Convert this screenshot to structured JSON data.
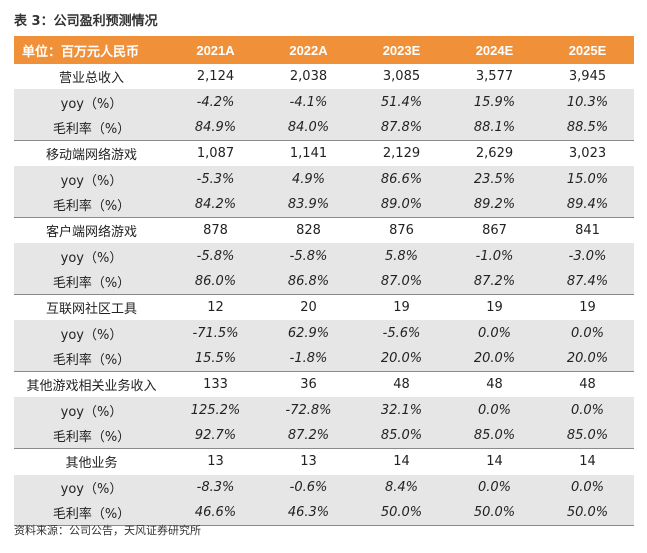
{
  "title": "表 3：公司盈利预测情况",
  "source": "资料来源：公司公告，天风证券研究所",
  "header": [
    "单位：百万元人民币",
    "2021A",
    "2022A",
    "2023E",
    "2024E",
    "2025E"
  ],
  "rows": [
    {
      "label": "营业总收入",
      "type": "seg",
      "values": [
        "2,124",
        "2,038",
        "3,085",
        "3,577",
        "3,945"
      ]
    },
    {
      "label": "yoy（%）",
      "type": "sub",
      "values": [
        "-4.2%",
        "-4.1%",
        "51.4%",
        "15.9%",
        "10.3%"
      ]
    },
    {
      "label": "毛利率（%）",
      "type": "sub",
      "values": [
        "84.9%",
        "84.0%",
        "87.8%",
        "88.1%",
        "88.5%"
      ]
    },
    {
      "label": "移动端网络游戏",
      "type": "seg",
      "values": [
        "1,087",
        "1,141",
        "2,129",
        "2,629",
        "3,023"
      ]
    },
    {
      "label": "yoy（%）",
      "type": "sub",
      "values": [
        "-5.3%",
        "4.9%",
        "86.6%",
        "23.5%",
        "15.0%"
      ]
    },
    {
      "label": "毛利率（%）",
      "type": "sub",
      "values": [
        "84.2%",
        "83.9%",
        "89.0%",
        "89.2%",
        "89.4%"
      ]
    },
    {
      "label": "客户端网络游戏",
      "type": "seg",
      "values": [
        "878",
        "828",
        "876",
        "867",
        "841"
      ]
    },
    {
      "label": "yoy（%）",
      "type": "sub",
      "values": [
        "-5.8%",
        "-5.8%",
        "5.8%",
        "-1.0%",
        "-3.0%"
      ]
    },
    {
      "label": "毛利率（%）",
      "type": "sub",
      "values": [
        "86.0%",
        "86.8%",
        "87.0%",
        "87.2%",
        "87.4%"
      ]
    },
    {
      "label": "互联网社区工具",
      "type": "seg",
      "values": [
        "12",
        "20",
        "19",
        "19",
        "19"
      ]
    },
    {
      "label": "yoy（%）",
      "type": "sub",
      "values": [
        "-71.5%",
        "62.9%",
        "-5.6%",
        "0.0%",
        "0.0%"
      ]
    },
    {
      "label": "毛利率（%）",
      "type": "sub",
      "values": [
        "15.5%",
        "-1.8%",
        "20.0%",
        "20.0%",
        "20.0%"
      ]
    },
    {
      "label": "其他游戏相关业务收入",
      "type": "seg",
      "values": [
        "133",
        "36",
        "48",
        "48",
        "48"
      ]
    },
    {
      "label": "yoy（%）",
      "type": "sub",
      "values": [
        "125.2%",
        "-72.8%",
        "32.1%",
        "0.0%",
        "0.0%"
      ]
    },
    {
      "label": "毛利率（%）",
      "type": "sub",
      "values": [
        "92.7%",
        "87.2%",
        "85.0%",
        "85.0%",
        "85.0%"
      ]
    },
    {
      "label": "其他业务",
      "type": "seg",
      "values": [
        "13",
        "13",
        "14",
        "14",
        "14"
      ]
    },
    {
      "label": "yoy（%）",
      "type": "sub",
      "values": [
        "-8.3%",
        "-0.6%",
        "8.4%",
        "0.0%",
        "0.0%"
      ]
    },
    {
      "label": "毛利率（%）",
      "type": "sub",
      "values": [
        "46.6%",
        "46.3%",
        "50.0%",
        "50.0%",
        "50.0%"
      ]
    }
  ],
  "colors": {
    "header_bg": "#f0913a",
    "sub_row_bg": "#e6e6e6",
    "divider": "#8a8a8a"
  }
}
